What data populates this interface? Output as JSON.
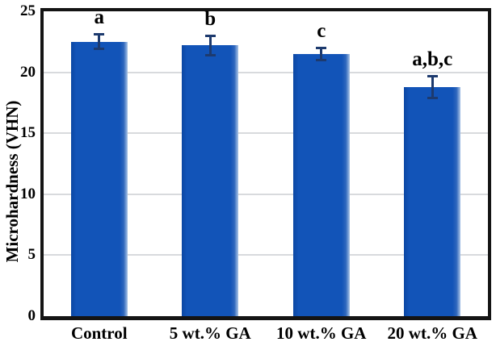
{
  "chart_data": {
    "type": "bar",
    "title": "",
    "categories": [
      "Control",
      "5 wt.% GA",
      "10 wt.% GA",
      "20 wt.% GA"
    ],
    "values": [
      22.5,
      22.2,
      21.5,
      18.8
    ],
    "errors": [
      0.7,
      0.9,
      0.6,
      1.0
    ],
    "significance_labels": [
      "a",
      "b",
      "c",
      "a,b,c"
    ],
    "xlabel": "",
    "ylabel": "Microhardness (VHN)",
    "ylim": [
      0,
      25
    ],
    "yticks": [
      0,
      5,
      10,
      15,
      20,
      25
    ],
    "ytick_labels": [
      "0",
      "5",
      "10",
      "15",
      "20",
      "25"
    ],
    "grid": "horizontal",
    "legend": "none",
    "colors": {
      "bar_fill": "#1254b8",
      "bar_edge_dark": "#0b47a3",
      "bar_edge_light": "#a9c4e6",
      "error_bar": "#1d3a6e",
      "gridline": "#d8dadd",
      "frame": "#141414",
      "text": "#000000",
      "background": "#ffffff"
    }
  }
}
